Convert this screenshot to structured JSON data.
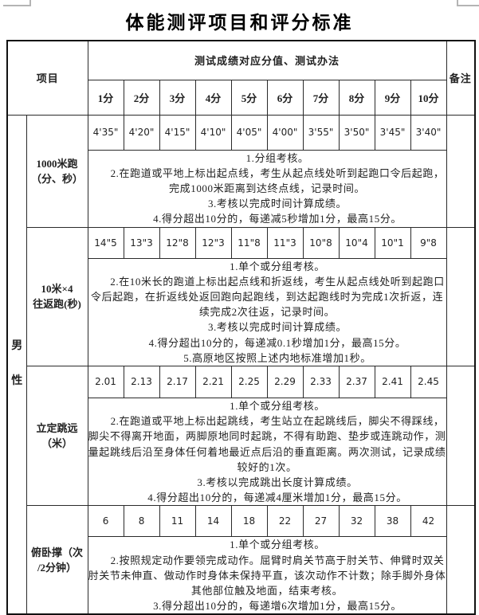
{
  "title": "体能测评项目和评分标准",
  "table": {
    "header": {
      "item": "项目",
      "score_band": "测试成绩对应分值、测试办法",
      "remark": "备注",
      "score_cols": [
        "1分",
        "2分",
        "3分",
        "4分",
        "5分",
        "6分",
        "7分",
        "8分",
        "9分",
        "10分"
      ]
    },
    "gender": "男性",
    "rows": [
      {
        "item": "1000米跑\n（分、秒）",
        "scores": [
          "4'35\"",
          "4'20\"",
          "4'15\"",
          "4'10\"",
          "4'05\"",
          "4'00\"",
          "3'55\"",
          "3'50\"",
          "3'45\"",
          "3'40\""
        ],
        "method": [
          "1.分组考核。",
          "2.在跑道或平地上标出起点线，考生从起点线处听到起跑口令后起跑，完成1000米距离到达终点线，记录时间。",
          "3.考核以完成时间计算成绩。",
          "4.得分超出10分的，每递减5秒增加1分，最高15分。"
        ]
      },
      {
        "item": "10米×4\n往返跑(秒)",
        "scores": [
          "14\"5",
          "13\"3",
          "12\"8",
          "12\"3",
          "11\"8",
          "11\"3",
          "10\"8",
          "10\"4",
          "10\"1",
          "9\"8"
        ],
        "method": [
          "1.单个或分组考核。",
          "2.在10米长的跑道上标出起点线和折返线，考生从起点线处听到起跑口令后起跑，在折返线处返回跑向起跑线，到达起跑线时为完成1次折返，连续完成2次往返，记录时间。",
          "3.考核以完成时间计算成绩。",
          "4.得分超出10分的，每递减0.1秒增加1分，最高15分。",
          "5.高原地区按照上述内地标准增加1秒。"
        ]
      },
      {
        "item": "立定跳远\n（米）",
        "scores": [
          "2.01",
          "2.13",
          "2.17",
          "2.21",
          "2.25",
          "2.29",
          "2.33",
          "2.37",
          "2.41",
          "2.45"
        ],
        "method": [
          "1.单个或分组考核。",
          "2.在跑道或平地上标出起跳线，考生站立在起跳线后，脚尖不得踩线，脚尖不得离开地面，两脚原地同时起跳，不得有助跑、垫步或连跳动作，测量起跳线后沿至身体任何着地最近点后沿的垂直距离。两次测试，记录成绩较好的1次。",
          "3.考核以完成跳出长度计算成绩。",
          "4.得分超出10分的，每递减4厘米增加1分，最高15分。"
        ]
      },
      {
        "item": "俯卧撑（次\n/2分钟）",
        "scores": [
          "6",
          "8",
          "11",
          "14",
          "18",
          "22",
          "27",
          "32",
          "38",
          "42"
        ],
        "method": [
          "1.单个或分组考核。",
          "2.按照规定动作要领完成动作。屈臂时肩关节高于肘关节、伸臂时双关肘关节未伸直、做动作时身体未保持平直，该次动作不计数；除手脚外身体其他部位触及地面，结束考核。",
          "3.得分超出10分的，每递增6次增加1分，最高15分。"
        ]
      }
    ]
  }
}
